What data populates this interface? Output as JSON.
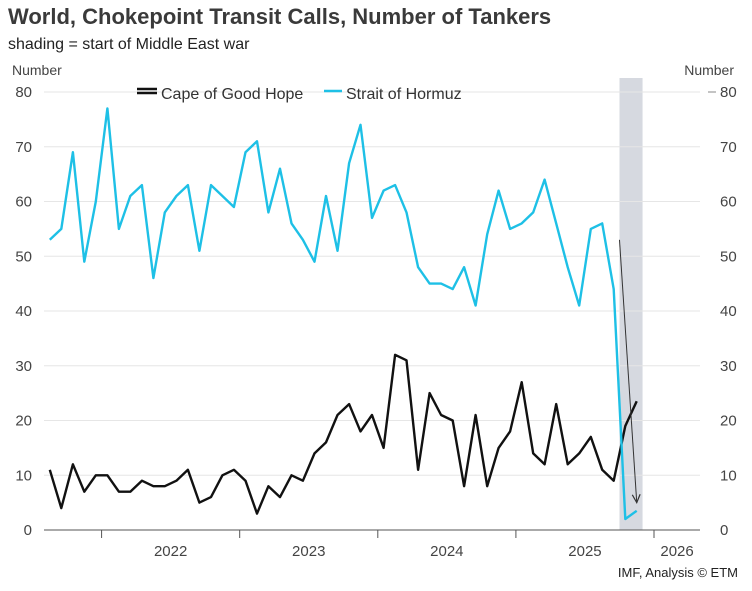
{
  "chart_data": {
    "type": "line",
    "title": "World, Chokepoint Transit Calls, Number of Tankers",
    "subtitle": "shading = start of Middle East war",
    "source": "IMF, Analysis © ETM",
    "ylabel_left": "Number",
    "ylabel_right": "Number",
    "ylim": [
      0,
      80
    ],
    "yticks": [
      0,
      10,
      20,
      30,
      40,
      50,
      60,
      70,
      80
    ],
    "xlim": [
      2021.583,
      2026.333
    ],
    "year_labels": [
      {
        "label": "2022",
        "x": 2022.5
      },
      {
        "label": "2023",
        "x": 2023.5
      },
      {
        "label": "2024",
        "x": 2024.5
      },
      {
        "label": "2025",
        "x": 2025.5
      },
      {
        "label": "2026",
        "x": 2026.167
      }
    ],
    "year_boundaries": [
      2022.0,
      2023.0,
      2024.0,
      2025.0,
      2026.0
    ],
    "shading": {
      "from": 2025.75,
      "to": 2025.917,
      "color": "#d6d9e0",
      "label": "start of Middle East war"
    },
    "series": [
      {
        "name": "Cape of Good Hope",
        "color": "#111111",
        "x": [
          2021.625,
          2021.708,
          2021.792,
          2021.875,
          2021.958,
          2022.042,
          2022.125,
          2022.208,
          2022.292,
          2022.375,
          2022.458,
          2022.542,
          2022.625,
          2022.708,
          2022.792,
          2022.875,
          2022.958,
          2023.042,
          2023.125,
          2023.208,
          2023.292,
          2023.375,
          2023.458,
          2023.542,
          2023.625,
          2023.708,
          2023.792,
          2023.875,
          2023.958,
          2024.042,
          2024.125,
          2024.208,
          2024.292,
          2024.375,
          2024.458,
          2024.542,
          2024.625,
          2024.708,
          2024.792,
          2024.875,
          2024.958,
          2025.042,
          2025.125,
          2025.208,
          2025.292,
          2025.375,
          2025.458,
          2025.542,
          2025.625,
          2025.708,
          2025.792,
          2025.875
        ],
        "values": [
          11,
          4,
          12,
          7,
          10,
          10,
          7,
          7,
          9,
          8,
          8,
          9,
          11,
          5,
          6,
          10,
          11,
          9,
          3,
          8,
          6,
          10,
          9,
          14,
          16,
          21,
          23,
          18,
          21,
          15,
          32,
          31,
          11,
          25,
          21,
          20,
          8,
          21,
          8,
          15,
          18,
          27,
          14,
          12,
          23,
          12,
          14,
          17,
          11,
          9,
          19,
          23.5
        ]
      },
      {
        "name": "Strait of Hormuz",
        "color": "#1ec0e6",
        "x": [
          2021.625,
          2021.708,
          2021.792,
          2021.875,
          2021.958,
          2022.042,
          2022.125,
          2022.208,
          2022.292,
          2022.375,
          2022.458,
          2022.542,
          2022.625,
          2022.708,
          2022.792,
          2022.875,
          2022.958,
          2023.042,
          2023.125,
          2023.208,
          2023.292,
          2023.375,
          2023.458,
          2023.542,
          2023.625,
          2023.708,
          2023.792,
          2023.875,
          2023.958,
          2024.042,
          2024.125,
          2024.208,
          2024.292,
          2024.375,
          2024.458,
          2024.542,
          2024.625,
          2024.708,
          2024.792,
          2024.875,
          2024.958,
          2025.042,
          2025.125,
          2025.208,
          2025.292,
          2025.375,
          2025.458,
          2025.542,
          2025.625,
          2025.708,
          2025.792,
          2025.875
        ],
        "values": [
          53,
          55,
          69,
          49,
          60,
          77,
          55,
          61,
          63,
          46,
          58,
          61,
          63,
          51,
          63,
          61,
          59,
          69,
          71,
          58,
          66,
          56,
          53,
          49,
          61,
          51,
          67,
          74,
          57,
          62,
          63,
          58,
          48,
          45,
          45,
          44,
          48,
          41,
          54,
          62,
          55,
          56,
          58,
          64,
          56,
          48,
          41,
          55,
          56,
          44,
          2,
          3.5
        ]
      }
    ],
    "annotations": [
      {
        "type": "arrow",
        "from": [
          2025.75,
          53
        ],
        "to": [
          2025.875,
          5
        ],
        "color": "#333333"
      }
    ]
  }
}
